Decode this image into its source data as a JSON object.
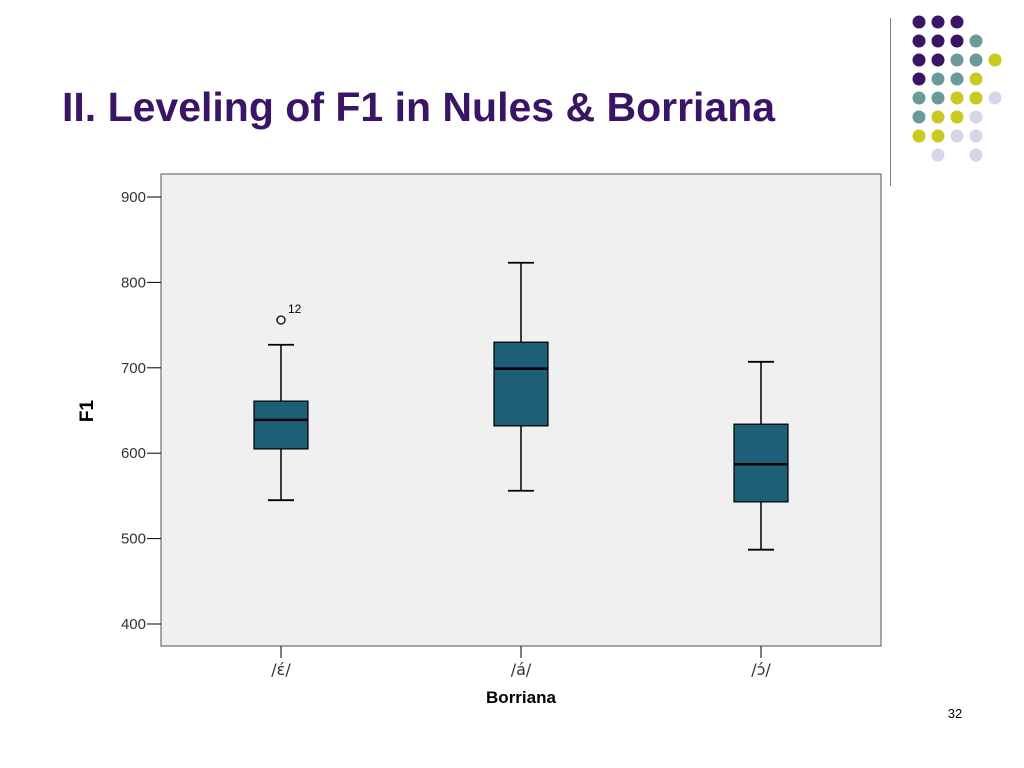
{
  "slide": {
    "title": "II. Leveling of F1 in Nules & Borriana",
    "number": "32",
    "title_color": "#3a1565"
  },
  "decoration": {
    "colors": {
      "purple": "#3a1565",
      "teal": "#6b9a9a",
      "yellow": "#c9c920",
      "lavender": "#d6d6e8"
    },
    "grid": [
      [
        "purple",
        "purple",
        "purple",
        "",
        ""
      ],
      [
        "purple",
        "purple",
        "purple",
        "teal",
        ""
      ],
      [
        "purple",
        "purple",
        "teal",
        "teal",
        "yellow"
      ],
      [
        "purple",
        "teal",
        "teal",
        "yellow",
        ""
      ],
      [
        "teal",
        "teal",
        "yellow",
        "yellow",
        "lavender"
      ],
      [
        "teal",
        "yellow",
        "yellow",
        "lavender",
        ""
      ],
      [
        "yellow",
        "yellow",
        "lavender",
        "lavender",
        ""
      ],
      [
        "",
        "lavender",
        "",
        "lavender",
        ""
      ]
    ]
  },
  "chart_data": {
    "type": "boxplot",
    "title": "",
    "xlabel": "Borriana",
    "ylabel": "F1",
    "ylim": [
      400,
      900
    ],
    "yticks": [
      400,
      500,
      600,
      700,
      800,
      900
    ],
    "box_color": "#1e5f78",
    "plot_background": "#f0f0f0",
    "grid": false,
    "categories": [
      "/έ/",
      "/á/",
      "/ɔ́/"
    ],
    "boxes": [
      {
        "category": "/έ/",
        "whisker_low": 545,
        "q1": 605,
        "median": 639,
        "q3": 661,
        "whisker_high": 727,
        "outliers": [
          {
            "value": 756,
            "label": "12"
          }
        ]
      },
      {
        "category": "/á/",
        "whisker_low": 556,
        "q1": 632,
        "median": 699,
        "q3": 730,
        "whisker_high": 823,
        "outliers": []
      },
      {
        "category": "/ɔ́/",
        "whisker_low": 487,
        "q1": 543,
        "median": 587,
        "q3": 634,
        "whisker_high": 707,
        "outliers": []
      }
    ]
  }
}
